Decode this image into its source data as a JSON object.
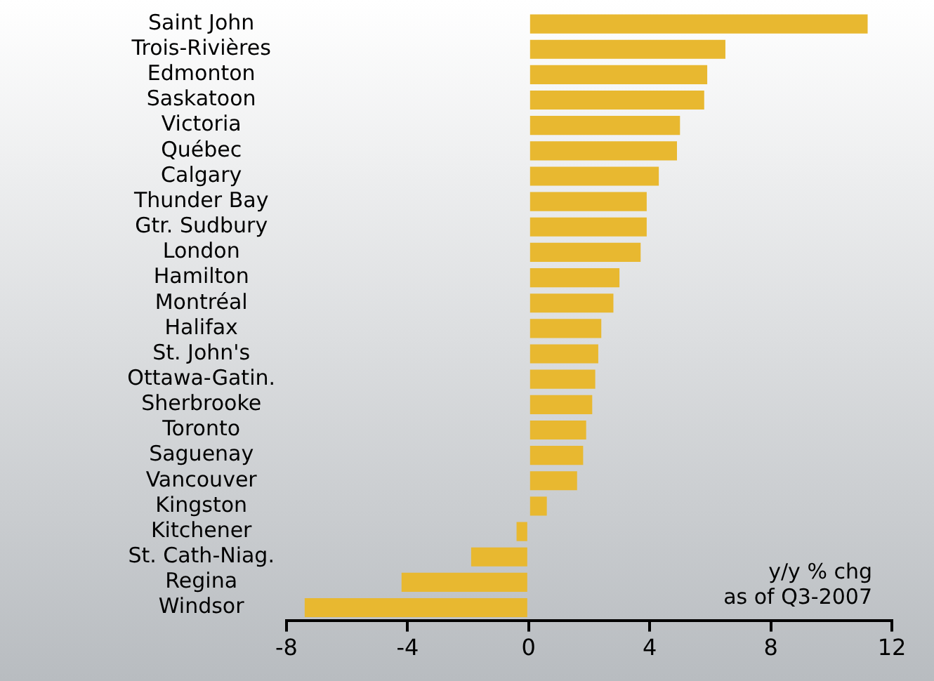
{
  "chart_data": {
    "type": "bar",
    "orientation": "horizontal",
    "categories": [
      "Saint John",
      "Trois-Rivières",
      "Edmonton",
      "Saskatoon",
      "Victoria",
      "Québec",
      "Calgary",
      "Thunder Bay",
      "Gtr. Sudbury",
      "London",
      "Hamilton",
      "Montréal",
      "Halifax",
      "St. John's",
      "Ottawa-Gatin.",
      "Sherbrooke",
      "Toronto",
      "Saguenay",
      "Vancouver",
      "Kingston",
      "Kitchener",
      "St. Cath-Niag.",
      "Regina",
      "Windsor"
    ],
    "values": [
      11.2,
      6.5,
      5.9,
      5.8,
      5.0,
      4.9,
      4.3,
      3.9,
      3.9,
      3.7,
      3.0,
      2.8,
      2.4,
      2.3,
      2.2,
      2.1,
      1.9,
      1.8,
      1.6,
      0.6,
      -0.4,
      -1.9,
      -4.2,
      -7.4
    ],
    "color": "#e8b830",
    "xlim": [
      -8,
      12
    ],
    "xticks": [
      -8,
      -4,
      0,
      4,
      8,
      12
    ],
    "grid": false,
    "legend": false,
    "annotations": [
      "y/y % chg",
      "as of Q3-2007"
    ]
  }
}
